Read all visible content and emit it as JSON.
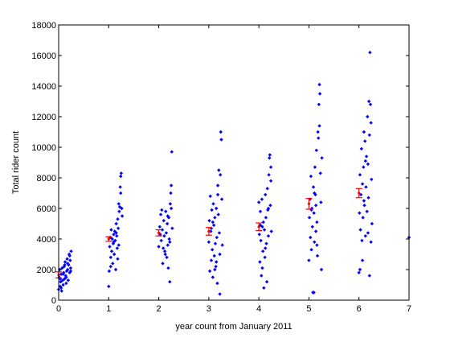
{
  "chart_data": {
    "type": "scatter",
    "title": "",
    "xlabel": "year count from January 2011",
    "ylabel": "Total rider count",
    "xlim": [
      0,
      7
    ],
    "ylim": [
      0,
      18000
    ],
    "x_ticks": [
      0,
      1,
      2,
      3,
      4,
      5,
      6,
      7
    ],
    "y_ticks": [
      0,
      2000,
      4000,
      6000,
      8000,
      10000,
      12000,
      14000,
      16000,
      18000
    ],
    "grid": false,
    "legend": "none",
    "colors": {
      "points": "#0000ff",
      "error_bars": "#ff0000",
      "axes": "#000000"
    },
    "series": [
      {
        "marker": "diamond",
        "color": "#0000ff",
        "points": [
          [
            0.0,
            700
          ],
          [
            0.01,
            1500
          ],
          [
            0.02,
            2000
          ],
          [
            0.03,
            900
          ],
          [
            0.04,
            1200
          ],
          [
            0.05,
            1700
          ],
          [
            0.06,
            600
          ],
          [
            0.07,
            2100
          ],
          [
            0.08,
            1300
          ],
          [
            0.09,
            1000
          ],
          [
            0.1,
            1800
          ],
          [
            0.11,
            2200
          ],
          [
            0.12,
            1400
          ],
          [
            0.13,
            2500
          ],
          [
            0.14,
            1600
          ],
          [
            0.15,
            1100
          ],
          [
            0.16,
            1900
          ],
          [
            0.17,
            2700
          ],
          [
            0.18,
            2000
          ],
          [
            0.19,
            1300
          ],
          [
            0.2,
            2300
          ],
          [
            0.21,
            3000
          ],
          [
            0.22,
            1800
          ],
          [
            0.23,
            2600
          ],
          [
            0.24,
            2100
          ],
          [
            0.25,
            3200
          ],
          [
            0.03,
            1400
          ],
          [
            0.05,
            800
          ],
          [
            0.09,
            1700
          ],
          [
            0.12,
            2300
          ],
          [
            0.15,
            1500
          ],
          [
            0.18,
            2400
          ],
          [
            0.22,
            2900
          ],
          [
            0.24,
            1900
          ],
          [
            1.0,
            900
          ],
          [
            1.01,
            1900
          ],
          [
            1.02,
            3500
          ],
          [
            1.03,
            4100
          ],
          [
            1.04,
            2800
          ],
          [
            1.05,
            4600
          ],
          [
            1.06,
            3200
          ],
          [
            1.07,
            4000
          ],
          [
            1.08,
            2400
          ],
          [
            1.09,
            3700
          ],
          [
            1.1,
            4300
          ],
          [
            1.11,
            3000
          ],
          [
            1.12,
            4500
          ],
          [
            1.13,
            3900
          ],
          [
            1.14,
            2000
          ],
          [
            1.15,
            5000
          ],
          [
            1.16,
            4200
          ],
          [
            1.17,
            3400
          ],
          [
            1.18,
            5300
          ],
          [
            1.19,
            4700
          ],
          [
            1.2,
            3600
          ],
          [
            1.21,
            5800
          ],
          [
            1.22,
            6100
          ],
          [
            1.23,
            7400
          ],
          [
            1.24,
            8100
          ],
          [
            1.25,
            8300
          ],
          [
            1.26,
            6000
          ],
          [
            1.27,
            5500
          ],
          [
            1.04,
            2200
          ],
          [
            1.1,
            3800
          ],
          [
            1.15,
            4400
          ],
          [
            1.2,
            6300
          ],
          [
            1.24,
            7000
          ],
          [
            1.18,
            2700
          ],
          [
            2.0,
            3500
          ],
          [
            2.02,
            4800
          ],
          [
            2.04,
            5600
          ],
          [
            2.05,
            3900
          ],
          [
            2.07,
            4600
          ],
          [
            2.08,
            2400
          ],
          [
            2.1,
            5200
          ],
          [
            2.11,
            4200
          ],
          [
            2.12,
            3200
          ],
          [
            2.14,
            5800
          ],
          [
            2.15,
            4400
          ],
          [
            2.16,
            2800
          ],
          [
            2.17,
            5000
          ],
          [
            2.18,
            3600
          ],
          [
            2.19,
            2100
          ],
          [
            2.2,
            5400
          ],
          [
            2.21,
            4000
          ],
          [
            2.22,
            1200
          ],
          [
            2.23,
            6300
          ],
          [
            2.24,
            7000
          ],
          [
            2.25,
            7500
          ],
          [
            2.26,
            9700
          ],
          [
            2.27,
            4700
          ],
          [
            2.06,
            5900
          ],
          [
            2.13,
            3000
          ],
          [
            2.18,
            5500
          ],
          [
            2.22,
            3800
          ],
          [
            2.25,
            6000
          ],
          [
            2.03,
            4300
          ],
          [
            2.09,
            3400
          ],
          [
            3.0,
            3800
          ],
          [
            3.01,
            5200
          ],
          [
            3.02,
            1900
          ],
          [
            3.03,
            6800
          ],
          [
            3.04,
            4500
          ],
          [
            3.05,
            2600
          ],
          [
            3.06,
            5900
          ],
          [
            3.07,
            3300
          ],
          [
            3.08,
            1500
          ],
          [
            3.09,
            6300
          ],
          [
            3.1,
            4900
          ],
          [
            3.11,
            2900
          ],
          [
            3.12,
            5400
          ],
          [
            3.13,
            3700
          ],
          [
            3.14,
            2200
          ],
          [
            3.15,
            6000
          ],
          [
            3.16,
            4100
          ],
          [
            3.17,
            1100
          ],
          [
            3.18,
            7500
          ],
          [
            3.19,
            5600
          ],
          [
            3.2,
            8500
          ],
          [
            3.21,
            4400
          ],
          [
            3.22,
            3000
          ],
          [
            3.23,
            8200
          ],
          [
            3.24,
            11000
          ],
          [
            3.25,
            10500
          ],
          [
            3.26,
            6600
          ],
          [
            3.27,
            3600
          ],
          [
            3.05,
            4700
          ],
          [
            3.12,
            2000
          ],
          [
            3.18,
            6900
          ],
          [
            3.22,
            400
          ],
          [
            3.08,
            5100
          ],
          [
            3.15,
            2500
          ],
          [
            4.0,
            6400
          ],
          [
            4.01,
            4300
          ],
          [
            4.02,
            2500
          ],
          [
            4.03,
            5800
          ],
          [
            4.04,
            3900
          ],
          [
            4.05,
            1600
          ],
          [
            4.06,
            6600
          ],
          [
            4.07,
            4800
          ],
          [
            4.08,
            3200
          ],
          [
            4.09,
            5100
          ],
          [
            4.1,
            800
          ],
          [
            4.11,
            4600
          ],
          [
            4.12,
            2800
          ],
          [
            4.13,
            6900
          ],
          [
            4.14,
            5400
          ],
          [
            4.15,
            3700
          ],
          [
            4.16,
            1200
          ],
          [
            4.17,
            7300
          ],
          [
            4.18,
            5900
          ],
          [
            4.19,
            4200
          ],
          [
            4.2,
            8200
          ],
          [
            4.21,
            9300
          ],
          [
            4.22,
            9500
          ],
          [
            4.23,
            6200
          ],
          [
            4.24,
            7800
          ],
          [
            4.25,
            4500
          ],
          [
            4.07,
            2100
          ],
          [
            4.13,
            3400
          ],
          [
            4.19,
            6000
          ],
          [
            4.24,
            8700
          ],
          [
            4.03,
            4900
          ],
          [
            5.0,
            2600
          ],
          [
            5.01,
            5400
          ],
          [
            5.02,
            6600
          ],
          [
            5.03,
            4100
          ],
          [
            5.04,
            8100
          ],
          [
            5.05,
            3300
          ],
          [
            5.06,
            6000
          ],
          [
            5.07,
            4800
          ],
          [
            5.08,
            500
          ],
          [
            5.09,
            7400
          ],
          [
            5.1,
            5700
          ],
          [
            5.11,
            3800
          ],
          [
            5.12,
            8700
          ],
          [
            5.13,
            6900
          ],
          [
            5.14,
            4500
          ],
          [
            5.15,
            9800
          ],
          [
            5.16,
            5100
          ],
          [
            5.17,
            2900
          ],
          [
            5.18,
            11000
          ],
          [
            5.19,
            10600
          ],
          [
            5.2,
            12800
          ],
          [
            5.21,
            14100
          ],
          [
            5.22,
            13500
          ],
          [
            5.23,
            8300
          ],
          [
            5.24,
            6400
          ],
          [
            5.25,
            2000
          ],
          [
            5.26,
            9300
          ],
          [
            5.05,
            5900
          ],
          [
            5.11,
            7000
          ],
          [
            5.16,
            3600
          ],
          [
            5.21,
            11400
          ],
          [
            5.1,
            500
          ],
          [
            5.14,
            6200
          ],
          [
            6.0,
            1800
          ],
          [
            6.01,
            5700
          ],
          [
            6.02,
            8200
          ],
          [
            6.03,
            4600
          ],
          [
            6.04,
            6900
          ],
          [
            6.05,
            9900
          ],
          [
            6.06,
            3900
          ],
          [
            6.07,
            7600
          ],
          [
            6.08,
            5400
          ],
          [
            6.09,
            8700
          ],
          [
            6.1,
            11000
          ],
          [
            6.11,
            6200
          ],
          [
            6.12,
            10400
          ],
          [
            6.13,
            4200
          ],
          [
            6.14,
            7400
          ],
          [
            6.15,
            9400
          ],
          [
            6.16,
            5800
          ],
          [
            6.17,
            12000
          ],
          [
            6.18,
            8900
          ],
          [
            6.19,
            6700
          ],
          [
            6.2,
            13000
          ],
          [
            6.21,
            10800
          ],
          [
            6.22,
            16200
          ],
          [
            6.23,
            12800
          ],
          [
            6.24,
            3800
          ],
          [
            6.25,
            7900
          ],
          [
            6.26,
            5000
          ],
          [
            6.21,
            1600
          ],
          [
            6.07,
            2600
          ],
          [
            6.13,
            9100
          ],
          [
            6.18,
            4400
          ],
          [
            6.24,
            11600
          ],
          [
            6.02,
            2000
          ],
          [
            6.1,
            6500
          ],
          [
            7.0,
            4100
          ]
        ]
      }
    ],
    "error_bars": [
      {
        "x": 0,
        "y": 1650,
        "lo": 1450,
        "hi": 1850
      },
      {
        "x": 1,
        "y": 4000,
        "lo": 3850,
        "hi": 4150
      },
      {
        "x": 2,
        "y": 4400,
        "lo": 4200,
        "hi": 4600
      },
      {
        "x": 3,
        "y": 4500,
        "lo": 4250,
        "hi": 4750
      },
      {
        "x": 4,
        "y": 4800,
        "lo": 4550,
        "hi": 5050
      },
      {
        "x": 5,
        "y": 6300,
        "lo": 5950,
        "hi": 6650
      },
      {
        "x": 6,
        "y": 7000,
        "lo": 6700,
        "hi": 7300
      }
    ]
  }
}
